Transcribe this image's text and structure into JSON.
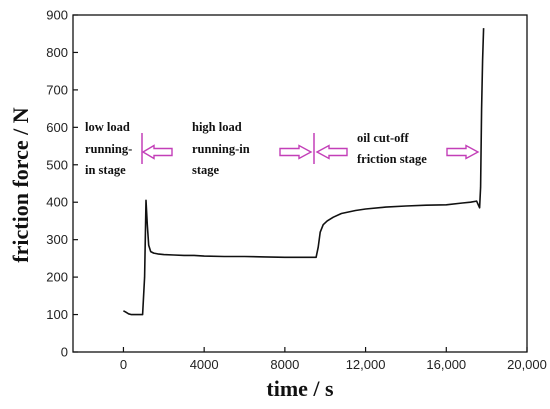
{
  "chart_data": {
    "type": "line",
    "title": "",
    "xlabel": "time / s",
    "ylabel": "friction force / N",
    "xlim": [
      -2500,
      20000
    ],
    "ylim": [
      0,
      900
    ],
    "xticks": [
      0,
      4000,
      8000,
      12000,
      16000,
      20000
    ],
    "xtick_labels": [
      "0",
      "4000",
      "8000",
      "12,000",
      "16,000",
      "20,000"
    ],
    "yticks": [
      0,
      100,
      200,
      300,
      400,
      500,
      600,
      700,
      800,
      900
    ],
    "ytick_labels": [
      "0",
      "100",
      "200",
      "300",
      "400",
      "500",
      "600",
      "700",
      "800",
      "900"
    ],
    "grid": false,
    "series": [
      {
        "x": [
          0,
          100,
          250,
          400,
          600,
          800,
          950,
          1050,
          1120,
          1180,
          1250,
          1350,
          1500,
          1700,
          2000,
          2500,
          3000,
          3500,
          4000,
          5000,
          6000,
          7000,
          8000,
          9000,
          9550,
          9650,
          9750,
          9900,
          10100,
          10400,
          10800,
          11500,
          12000,
          13000,
          14000,
          15000,
          16000,
          16800,
          17200,
          17500,
          17650,
          17700,
          17750,
          17800,
          17850
        ],
        "y": [
          110,
          107,
          102,
          100,
          100,
          100,
          100,
          200,
          405,
          340,
          285,
          268,
          264,
          262,
          260,
          259,
          258,
          258,
          256,
          255,
          255,
          254,
          253,
          253,
          253,
          280,
          320,
          340,
          350,
          360,
          370,
          378,
          382,
          387,
          390,
          392,
          393,
          398,
          400,
          403,
          385,
          440,
          650,
          780,
          865
        ]
      }
    ],
    "annotations": {
      "stage1_line1": "low load",
      "stage1_line2": "running-",
      "stage1_line3": "in stage",
      "stage2_line1": "high load",
      "stage2_line2": "running-in",
      "stage2_line3": "stage",
      "stage3_line1": "oil cut-off",
      "stage3_line2": "friction stage"
    },
    "colors": {
      "line": "#111111",
      "arrow": "#c33fb8"
    }
  }
}
